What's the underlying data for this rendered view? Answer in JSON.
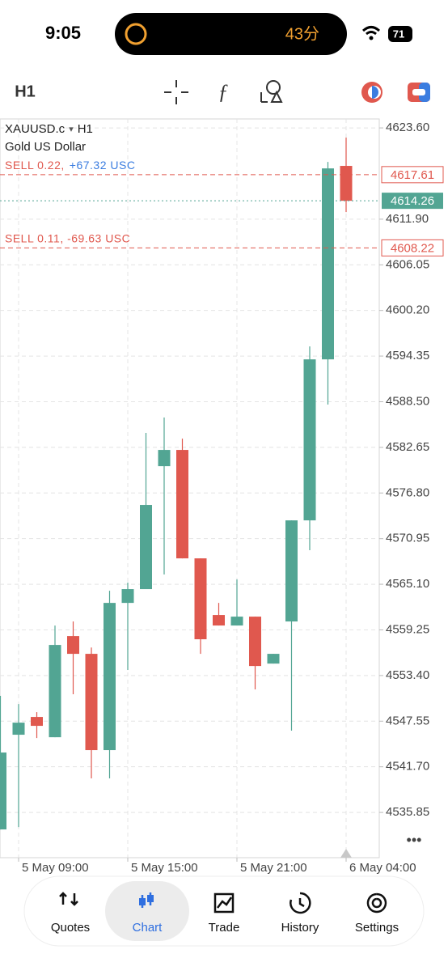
{
  "status_bar": {
    "time": "9:05",
    "activity": "43分",
    "battery": "71"
  },
  "toolbar": {
    "timeframe": "H1"
  },
  "chart_data": {
    "type": "candlestick",
    "symbol": "XAUUSD.c",
    "timeframe": "H1",
    "description": "Gold US Dollar",
    "categories": [
      null,
      "5 May 09:00",
      null,
      null,
      null,
      null,
      null,
      "5 May 15:00",
      null,
      null,
      null,
      null,
      null,
      "5 May 21:00",
      null,
      null,
      null,
      null,
      null,
      "6 May 04:00"
    ],
    "open": [
      4533.67,
      4545.81,
      4548.09,
      4545.49,
      4558.46,
      4556.18,
      4543.84,
      4562.71,
      4564.48,
      4580.24,
      4582.32,
      4568.42,
      4561.16,
      4559.81,
      4560.95,
      4554.93,
      4560.33,
      4573.29,
      4593.93,
      4618.73
    ],
    "high": [
      4550.79,
      4549.75,
      4548.71,
      4559.81,
      4560.33,
      4556.99,
      4564.27,
      4565.31,
      4584.5,
      4586.47,
      4583.77,
      4568.42,
      4562.71,
      4565.72,
      4560.95,
      4556.18,
      4573.29,
      4595.59,
      4619.24,
      4622.36
    ],
    "low": [
      4533.67,
      4533.98,
      4545.39,
      4545.49,
      4551.0,
      4540.21,
      4540.21,
      4554.11,
      4564.48,
      4566.35,
      4568.42,
      4556.18,
      4559.81,
      4559.81,
      4551.62,
      4554.93,
      4546.33,
      4569.46,
      4588.13,
      4612.81
    ],
    "close": [
      4543.53,
      4547.36,
      4546.95,
      4557.32,
      4556.18,
      4543.84,
      4562.71,
      4564.48,
      4575.27,
      4582.32,
      4568.42,
      4558.05,
      4559.81,
      4560.95,
      4554.62,
      4556.18,
      4573.29,
      4593.93,
      4618.41,
      4614.26
    ],
    "up_color": "#52a593",
    "down_color": "#e0584e",
    "ylim": [
      4530.05,
      4624.75
    ],
    "yticks": [
      {
        "value": 4623.6,
        "label": "4623.60"
      },
      {
        "value": 4611.9,
        "label": "4611.90"
      },
      4606.05,
      {
        "value": 4600.2,
        "label": "4600.20"
      },
      4594.35,
      {
        "value": 4588.5,
        "label": "4588.50"
      },
      4582.65,
      {
        "value": 4576.8,
        "label": "4576.80"
      },
      4570.95,
      {
        "value": 4565.1,
        "label": "4565.10"
      },
      4559.25,
      {
        "value": 4553.4,
        "label": "4553.40"
      },
      4547.55,
      {
        "value": 4541.7,
        "label": "4541.70"
      },
      4535.85
    ],
    "grid": true,
    "positions": [
      {
        "label": "SELL 0.22,",
        "profit": "+67.32 USC",
        "price": 4617.61
      },
      {
        "label": "SELL 0.11, -69.63 USC",
        "price": 4608.22
      }
    ],
    "current_price": 4614.26
  },
  "nav": {
    "items": [
      "Quotes",
      "Chart",
      "Trade",
      "History",
      "Settings"
    ],
    "active": 1
  }
}
